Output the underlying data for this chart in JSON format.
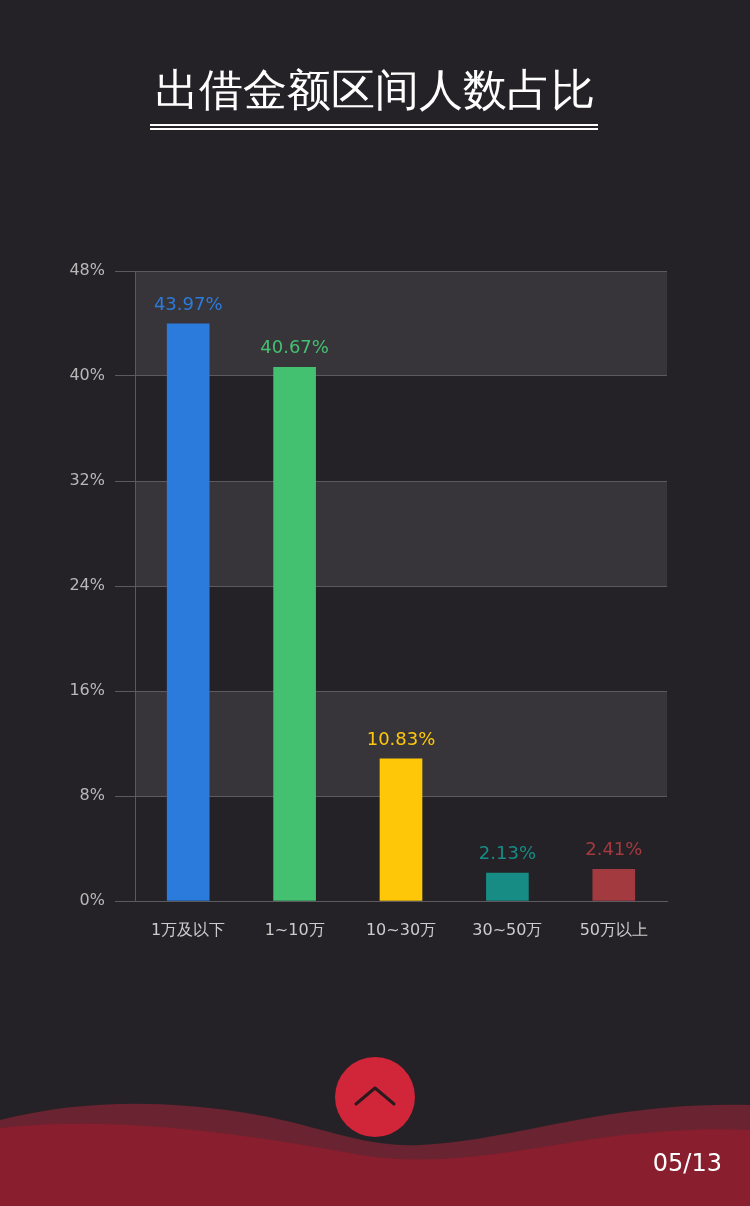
{
  "chart_data": {
    "type": "bar",
    "title": "出借金额区间人数占比",
    "categories": [
      "1万及以下",
      "1~10万",
      "10~30万",
      "30~50万",
      "50万以上"
    ],
    "values": [
      43.97,
      40.67,
      10.83,
      2.13,
      2.41
    ],
    "colors": [
      "#2a7bdb",
      "#43c170",
      "#fec808",
      "#178c85",
      "#a33a40"
    ],
    "value_labels": [
      "43.97%",
      "40.67%",
      "10.83%",
      "2.13%",
      "2.41%"
    ],
    "ylim": [
      0,
      48
    ],
    "yticks": [
      {
        "value": 0,
        "label": "0%"
      },
      {
        "value": 8,
        "label": "8%"
      },
      {
        "value": 16,
        "label": "16%"
      },
      {
        "value": 24,
        "label": "24%"
      },
      {
        "value": 32,
        "label": "32%"
      },
      {
        "value": 40,
        "label": "40%"
      },
      {
        "value": 48,
        "label": "48%"
      }
    ],
    "grid": "y",
    "bands": [
      {
        "axis": "y",
        "from": 8,
        "to": 16,
        "color": "#38353a"
      },
      {
        "axis": "y",
        "from": 24,
        "to": 32,
        "color": "#38353a"
      },
      {
        "axis": "y",
        "from": 40,
        "to": 48,
        "color": "#38353a"
      }
    ],
    "annotations": [
      "05/13"
    ]
  }
}
